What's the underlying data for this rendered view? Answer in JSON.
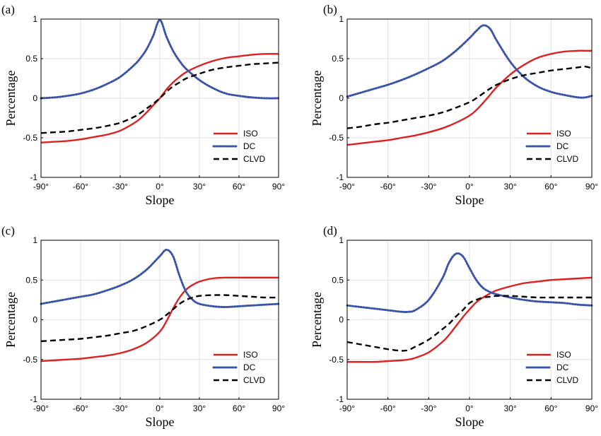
{
  "colors": {
    "ISO": "#e02020",
    "DC": "#3a55a8",
    "CLVD": "#000000"
  },
  "chart_data": [
    {
      "type": "line",
      "panel_label": "(a)",
      "xlabel": "Slope",
      "ylabel": "Percentage",
      "xlim": [
        -90,
        90
      ],
      "ylim": [
        -1,
        1
      ],
      "xticks": [
        -90,
        -60,
        -30,
        0,
        30,
        60,
        90
      ],
      "xtick_labels": [
        "-90°",
        "-60°",
        "-30°",
        "0°",
        "30°",
        "60°",
        "90°"
      ],
      "yticks": [
        -1,
        -0.5,
        0,
        0.5,
        1
      ],
      "ytick_labels": [
        "-1",
        "-0.5",
        "0",
        "0.5",
        "1"
      ],
      "grid": true,
      "legend": "bottom-right",
      "x": [
        -90,
        -80,
        -70,
        -60,
        -50,
        -40,
        -30,
        -20,
        -15,
        -10,
        -5,
        0,
        5,
        10,
        15,
        20,
        30,
        40,
        50,
        60,
        70,
        80,
        90
      ],
      "series": [
        {
          "name": "ISO",
          "style": "solid",
          "values": [
            -0.56,
            -0.55,
            -0.54,
            -0.52,
            -0.49,
            -0.46,
            -0.41,
            -0.32,
            -0.26,
            -0.18,
            -0.09,
            0.0,
            0.11,
            0.2,
            0.27,
            0.33,
            0.41,
            0.47,
            0.51,
            0.53,
            0.55,
            0.56,
            0.56
          ]
        },
        {
          "name": "DC",
          "style": "dotted",
          "values": [
            0.0,
            0.01,
            0.03,
            0.06,
            0.11,
            0.18,
            0.27,
            0.41,
            0.5,
            0.62,
            0.79,
            0.99,
            0.78,
            0.6,
            0.47,
            0.37,
            0.23,
            0.13,
            0.06,
            0.03,
            0.01,
            0.0,
            0.0
          ]
        },
        {
          "name": "CLVD",
          "style": "dashed",
          "values": [
            -0.44,
            -0.43,
            -0.42,
            -0.4,
            -0.38,
            -0.35,
            -0.31,
            -0.24,
            -0.19,
            -0.13,
            -0.07,
            0.0,
            0.08,
            0.15,
            0.2,
            0.25,
            0.31,
            0.36,
            0.39,
            0.41,
            0.43,
            0.44,
            0.45
          ]
        }
      ]
    },
    {
      "type": "line",
      "panel_label": "(b)",
      "xlabel": "Slope",
      "ylabel": "Percentage",
      "xlim": [
        -90,
        90
      ],
      "ylim": [
        -1,
        1
      ],
      "xticks": [
        -90,
        -60,
        -30,
        0,
        30,
        60,
        90
      ],
      "xtick_labels": [
        "-90°",
        "-60°",
        "-30°",
        "0°",
        "30°",
        "60°",
        "90°"
      ],
      "yticks": [
        -1,
        -0.5,
        0,
        0.5,
        1
      ],
      "ytick_labels": [
        "-1",
        "-0.5",
        "0",
        "0.5",
        "1"
      ],
      "grid": true,
      "legend": "bottom-right",
      "x": [
        -90,
        -80,
        -70,
        -60,
        -50,
        -40,
        -30,
        -20,
        -10,
        0,
        5,
        10,
        15,
        20,
        30,
        40,
        50,
        60,
        70,
        80,
        85,
        90
      ],
      "series": [
        {
          "name": "ISO",
          "style": "solid",
          "values": [
            -0.59,
            -0.57,
            -0.55,
            -0.53,
            -0.5,
            -0.47,
            -0.43,
            -0.38,
            -0.31,
            -0.22,
            -0.15,
            -0.06,
            0.04,
            0.14,
            0.3,
            0.42,
            0.51,
            0.56,
            0.59,
            0.6,
            0.6,
            0.6
          ]
        },
        {
          "name": "DC",
          "style": "dotted",
          "values": [
            0.02,
            0.07,
            0.12,
            0.17,
            0.23,
            0.3,
            0.38,
            0.47,
            0.6,
            0.76,
            0.85,
            0.92,
            0.88,
            0.73,
            0.46,
            0.27,
            0.15,
            0.08,
            0.04,
            0.01,
            0.01,
            0.03
          ]
        },
        {
          "name": "CLVD",
          "style": "dashed",
          "values": [
            -0.38,
            -0.36,
            -0.33,
            -0.31,
            -0.28,
            -0.25,
            -0.22,
            -0.18,
            -0.12,
            -0.05,
            0.0,
            0.06,
            0.12,
            0.17,
            0.24,
            0.29,
            0.32,
            0.35,
            0.37,
            0.39,
            0.4,
            0.38
          ]
        }
      ]
    },
    {
      "type": "line",
      "panel_label": "(c)",
      "xlabel": "Slope",
      "ylabel": "Percentage",
      "xlim": [
        -90,
        90
      ],
      "ylim": [
        -1,
        1
      ],
      "xticks": [
        -90,
        -60,
        -30,
        0,
        30,
        60,
        90
      ],
      "xtick_labels": [
        "-90°",
        "-60°",
        "-30°",
        "0°",
        "30°",
        "60°",
        "90°"
      ],
      "yticks": [
        -1,
        -0.5,
        0,
        0.5,
        1
      ],
      "ytick_labels": [
        "-1",
        "-0.5",
        "0",
        "0.5",
        "1"
      ],
      "grid": true,
      "legend": "bottom-right",
      "x": [
        -90,
        -80,
        -70,
        -60,
        -50,
        -40,
        -30,
        -20,
        -10,
        0,
        5,
        10,
        15,
        20,
        25,
        30,
        40,
        50,
        60,
        70,
        80,
        90
      ],
      "series": [
        {
          "name": "ISO",
          "style": "solid",
          "values": [
            -0.52,
            -0.51,
            -0.5,
            -0.49,
            -0.47,
            -0.45,
            -0.42,
            -0.37,
            -0.29,
            -0.15,
            -0.02,
            0.14,
            0.28,
            0.38,
            0.44,
            0.48,
            0.52,
            0.53,
            0.53,
            0.53,
            0.53,
            0.53
          ]
        },
        {
          "name": "DC",
          "style": "dotted",
          "values": [
            0.2,
            0.23,
            0.26,
            0.29,
            0.32,
            0.37,
            0.43,
            0.51,
            0.63,
            0.8,
            0.88,
            0.8,
            0.55,
            0.35,
            0.25,
            0.2,
            0.17,
            0.16,
            0.17,
            0.18,
            0.19,
            0.2
          ]
        },
        {
          "name": "CLVD",
          "style": "dashed",
          "values": [
            -0.27,
            -0.26,
            -0.25,
            -0.24,
            -0.22,
            -0.2,
            -0.17,
            -0.14,
            -0.08,
            0.0,
            0.06,
            0.13,
            0.2,
            0.25,
            0.28,
            0.3,
            0.31,
            0.31,
            0.3,
            0.29,
            0.28,
            0.28
          ]
        }
      ]
    },
    {
      "type": "line",
      "panel_label": "(d)",
      "xlabel": "Slope",
      "ylabel": "Percentage",
      "xlim": [
        -90,
        90
      ],
      "ylim": [
        -1,
        1
      ],
      "xticks": [
        -90,
        -60,
        -30,
        0,
        30,
        60,
        90
      ],
      "xtick_labels": [
        "-90°",
        "-60°",
        "-30°",
        "0°",
        "30°",
        "60°",
        "90°"
      ],
      "yticks": [
        -1,
        -0.5,
        0,
        0.5,
        1
      ],
      "ytick_labels": [
        "-1",
        "-0.5",
        "0",
        "0.5",
        "1"
      ],
      "grid": true,
      "legend": "bottom-right",
      "x": [
        -90,
        -80,
        -70,
        -60,
        -50,
        -45,
        -40,
        -30,
        -20,
        -15,
        -10,
        -5,
        0,
        5,
        10,
        15,
        20,
        30,
        40,
        50,
        60,
        70,
        80,
        90
      ],
      "series": [
        {
          "name": "ISO",
          "style": "solid",
          "values": [
            -0.53,
            -0.53,
            -0.53,
            -0.52,
            -0.51,
            -0.5,
            -0.48,
            -0.41,
            -0.28,
            -0.19,
            -0.08,
            0.03,
            0.13,
            0.22,
            0.28,
            0.33,
            0.37,
            0.42,
            0.46,
            0.48,
            0.5,
            0.51,
            0.52,
            0.53
          ]
        },
        {
          "name": "DC",
          "style": "dotted",
          "values": [
            0.18,
            0.16,
            0.14,
            0.12,
            0.1,
            0.1,
            0.12,
            0.25,
            0.52,
            0.72,
            0.83,
            0.8,
            0.65,
            0.5,
            0.4,
            0.35,
            0.32,
            0.28,
            0.25,
            0.23,
            0.22,
            0.21,
            0.19,
            0.18
          ]
        },
        {
          "name": "CLVD",
          "style": "dashed",
          "values": [
            -0.28,
            -0.31,
            -0.34,
            -0.37,
            -0.39,
            -0.38,
            -0.34,
            -0.25,
            -0.12,
            -0.05,
            0.04,
            0.12,
            0.21,
            0.25,
            0.28,
            0.29,
            0.3,
            0.3,
            0.29,
            0.28,
            0.28,
            0.28,
            0.28,
            0.28
          ]
        }
      ]
    }
  ]
}
